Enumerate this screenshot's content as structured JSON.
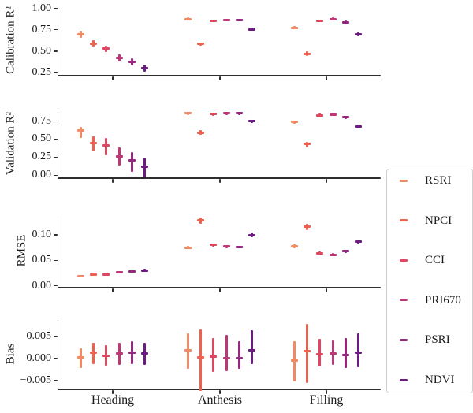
{
  "x_categories": [
    "Heading",
    "Anthesis",
    "Filling"
  ],
  "legend": {
    "items": [
      {
        "label": "RSRI",
        "color": "#f08a62"
      },
      {
        "label": "NPCI",
        "color": "#ec6150"
      },
      {
        "label": "CCI",
        "color": "#dd4760"
      },
      {
        "label": "PRI670",
        "color": "#bc3877"
      },
      {
        "label": "PSRI",
        "color": "#95287e"
      },
      {
        "label": "NDVI",
        "color": "#6a1c80"
      }
    ]
  },
  "chart_data": [
    {
      "type": "scatter",
      "ylabel": "Calibration R²",
      "yticks": [
        1.0,
        0.75,
        0.5,
        0.25
      ],
      "ytick_labels": [
        "1.00",
        "0.75",
        "0.50",
        "0.25"
      ],
      "ylim": [
        0.224,
        1.023
      ],
      "categories": [
        "Heading",
        "Anthesis",
        "Filling"
      ],
      "series": [
        {
          "name": "RSRI",
          "mean": [
            0.7,
            0.875,
            0.77
          ],
          "lo": [
            0.66,
            0.86,
            0.755
          ],
          "hi": [
            0.735,
            0.89,
            0.79
          ]
        },
        {
          "name": "NPCI",
          "mean": [
            0.59,
            0.585,
            0.47
          ],
          "lo": [
            0.555,
            0.565,
            0.445
          ],
          "hi": [
            0.625,
            0.605,
            0.495
          ]
        },
        {
          "name": "CCI",
          "mean": [
            0.53,
            0.855,
            0.855
          ],
          "lo": [
            0.49,
            0.84,
            0.835
          ],
          "hi": [
            0.565,
            0.87,
            0.87
          ]
        },
        {
          "name": "PRI670",
          "mean": [
            0.42,
            0.865,
            0.875
          ],
          "lo": [
            0.38,
            0.85,
            0.86
          ],
          "hi": [
            0.46,
            0.88,
            0.89
          ]
        },
        {
          "name": "PSRI",
          "mean": [
            0.375,
            0.865,
            0.835
          ],
          "lo": [
            0.33,
            0.85,
            0.815
          ],
          "hi": [
            0.42,
            0.88,
            0.855
          ]
        },
        {
          "name": "NDVI",
          "mean": [
            0.3,
            0.755,
            0.7
          ],
          "lo": [
            0.26,
            0.735,
            0.675
          ],
          "hi": [
            0.34,
            0.775,
            0.72
          ]
        }
      ]
    },
    {
      "type": "scatter",
      "ylabel": "Validation R²",
      "yticks": [
        0.75,
        0.5,
        0.25,
        0.0
      ],
      "ytick_labels": [
        "0.75",
        "0.50",
        "0.25",
        "0.00"
      ],
      "ylim": [
        -0.029,
        0.908
      ],
      "categories": [
        "Heading",
        "Anthesis",
        "Filling"
      ],
      "series": [
        {
          "name": "RSRI",
          "mean": [
            0.62,
            0.855,
            0.74
          ],
          "lo": [
            0.52,
            0.835,
            0.715
          ],
          "hi": [
            0.67,
            0.875,
            0.76
          ]
        },
        {
          "name": "NPCI",
          "mean": [
            0.45,
            0.59,
            0.43
          ],
          "lo": [
            0.33,
            0.555,
            0.39
          ],
          "hi": [
            0.54,
            0.62,
            0.465
          ]
        },
        {
          "name": "CCI",
          "mean": [
            0.41,
            0.845,
            0.825
          ],
          "lo": [
            0.28,
            0.825,
            0.8
          ],
          "hi": [
            0.52,
            0.865,
            0.85
          ]
        },
        {
          "name": "PRI670",
          "mean": [
            0.26,
            0.855,
            0.84
          ],
          "lo": [
            0.13,
            0.835,
            0.82
          ],
          "hi": [
            0.38,
            0.875,
            0.86
          ]
        },
        {
          "name": "PSRI",
          "mean": [
            0.21,
            0.855,
            0.8
          ],
          "lo": [
            0.05,
            0.835,
            0.775
          ],
          "hi": [
            0.32,
            0.875,
            0.825
          ]
        },
        {
          "name": "NDVI",
          "mean": [
            0.12,
            0.745,
            0.675
          ],
          "lo": [
            -0.03,
            0.72,
            0.645
          ],
          "hi": [
            0.24,
            0.77,
            0.7
          ]
        }
      ]
    },
    {
      "type": "scatter",
      "ylabel": "RMSE",
      "yticks": [
        0.1,
        0.05,
        0.0
      ],
      "ytick_labels": [
        "0.10",
        "0.05",
        "0.00"
      ],
      "ylim": [
        -0.0023,
        0.1403
      ],
      "categories": [
        "Heading",
        "Anthesis",
        "Filling"
      ],
      "series": [
        {
          "name": "RSRI",
          "mean": [
            0.019,
            0.075,
            0.078
          ],
          "lo": [
            0.017,
            0.072,
            0.074
          ],
          "hi": [
            0.021,
            0.078,
            0.082
          ]
        },
        {
          "name": "NPCI",
          "mean": [
            0.021,
            0.128,
            0.116
          ],
          "lo": [
            0.019,
            0.122,
            0.11
          ],
          "hi": [
            0.023,
            0.134,
            0.122
          ]
        },
        {
          "name": "CCI",
          "mean": [
            0.022,
            0.08,
            0.064
          ],
          "lo": [
            0.02,
            0.077,
            0.061
          ],
          "hi": [
            0.024,
            0.083,
            0.067
          ]
        },
        {
          "name": "PRI670",
          "mean": [
            0.026,
            0.077,
            0.061
          ],
          "lo": [
            0.024,
            0.074,
            0.058
          ],
          "hi": [
            0.028,
            0.08,
            0.064
          ]
        },
        {
          "name": "PSRI",
          "mean": [
            0.028,
            0.076,
            0.068
          ],
          "lo": [
            0.026,
            0.073,
            0.065
          ],
          "hi": [
            0.03,
            0.079,
            0.071
          ]
        },
        {
          "name": "NDVI",
          "mean": [
            0.03,
            0.1,
            0.087
          ],
          "lo": [
            0.027,
            0.096,
            0.083
          ],
          "hi": [
            0.033,
            0.104,
            0.091
          ]
        }
      ]
    },
    {
      "type": "scatter",
      "ylabel": "Bias",
      "yticks": [
        0.005,
        0.0,
        -0.005
      ],
      "ytick_labels": [
        "0.005",
        "0.000",
        "−0.005"
      ],
      "ylim": [
        -0.00679,
        0.00875
      ],
      "categories": [
        "Heading",
        "Anthesis",
        "Filling"
      ],
      "series": [
        {
          "name": "RSRI",
          "mean": [
            0.0003,
            0.0018,
            -0.0004
          ],
          "lo": [
            -0.0021,
            -0.0024,
            -0.0052
          ],
          "hi": [
            0.0024,
            0.0057,
            0.004
          ]
        },
        {
          "name": "NPCI",
          "mean": [
            0.0013,
            0.0002,
            0.0017
          ],
          "lo": [
            -0.0012,
            -0.0073,
            -0.0056
          ],
          "hi": [
            0.0036,
            0.0066,
            0.0078
          ]
        },
        {
          "name": "CCI",
          "mean": [
            0.0006,
            0.0005,
            0.001
          ],
          "lo": [
            -0.0016,
            -0.0031,
            -0.0018
          ],
          "hi": [
            0.0031,
            0.0047,
            0.0044
          ]
        },
        {
          "name": "PRI670",
          "mean": [
            0.0011,
            0.0001,
            0.0012
          ],
          "lo": [
            -0.0015,
            -0.0028,
            -0.0014
          ],
          "hi": [
            0.0035,
            0.0053,
            0.0041
          ]
        },
        {
          "name": "PSRI",
          "mean": [
            0.0014,
            0.0001,
            0.0008
          ],
          "lo": [
            -0.0012,
            -0.0024,
            -0.0022
          ],
          "hi": [
            0.004,
            0.0039,
            0.0046
          ]
        },
        {
          "name": "NDVI",
          "mean": [
            0.0012,
            0.0019,
            0.0014
          ],
          "lo": [
            -0.0014,
            -0.0013,
            -0.002
          ],
          "hi": [
            0.0036,
            0.0064,
            0.0057
          ]
        }
      ]
    }
  ]
}
